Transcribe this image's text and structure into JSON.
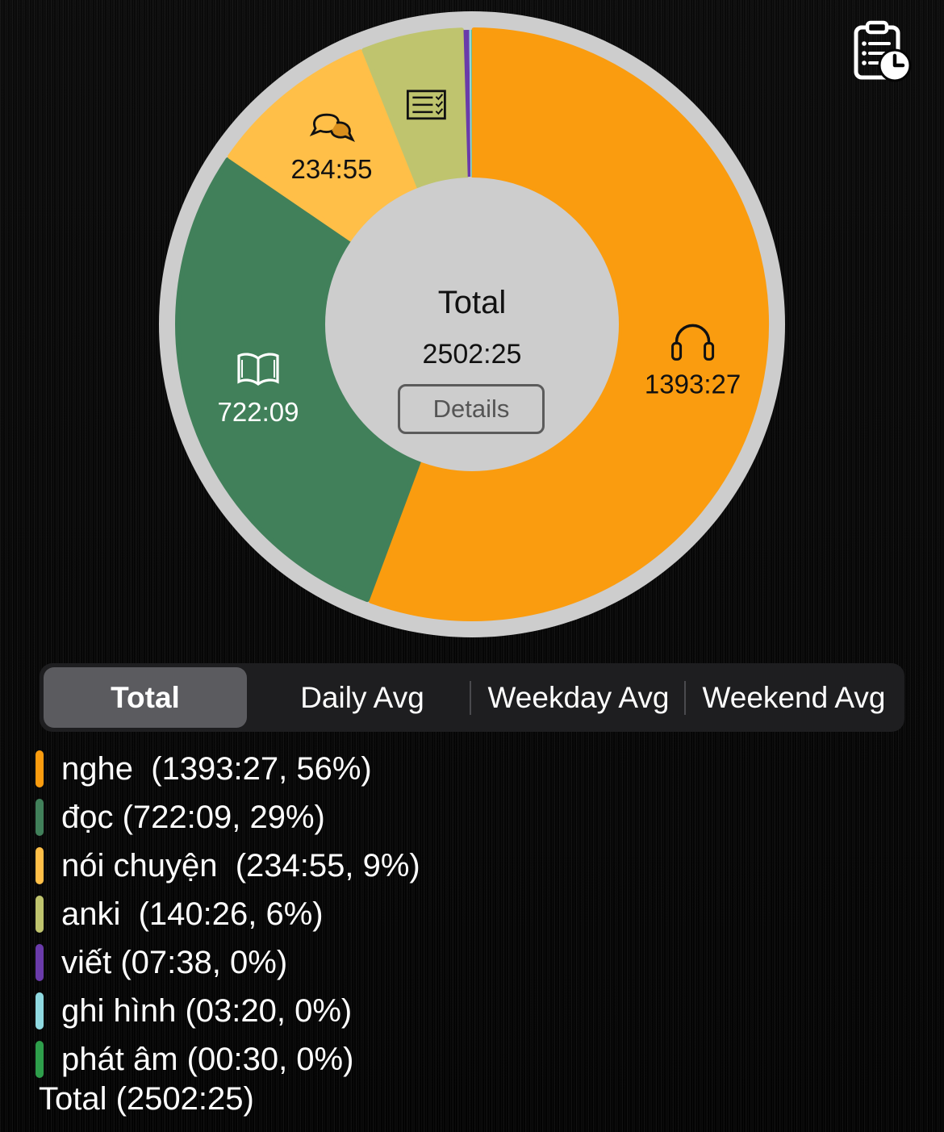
{
  "toolbar": {
    "history_icon": "clipboard-clock-icon"
  },
  "chart_data": {
    "type": "pie",
    "center": {
      "title": "Total",
      "value": "2502:25",
      "details_label": "Details"
    },
    "slices": [
      {
        "key": "nghe",
        "label": "1393:27",
        "minutes": 83607,
        "color": "#FA9C0F",
        "icon": "headphones-icon",
        "text_color": "#111111"
      },
      {
        "key": "doc",
        "label": "722:09",
        "minutes": 43329,
        "color": "#41805A",
        "icon": "book-icon",
        "text_color": "#ffffff"
      },
      {
        "key": "noi_chuyen",
        "label": "234:55",
        "minutes": 14095,
        "color": "#FFBF48",
        "icon": "chat-bubbles-icon",
        "text_color": "#111111"
      },
      {
        "key": "anki",
        "label": "",
        "minutes": 8426,
        "color": "#BFC46E",
        "icon": "checklist-icon",
        "text_color": "#111111"
      },
      {
        "key": "viet",
        "label": "",
        "minutes": 458,
        "color": "#6A3BAA",
        "icon": "",
        "text_color": "#111111"
      },
      {
        "key": "ghi_hinh",
        "label": "",
        "minutes": 200,
        "color": "#8FD9E0",
        "icon": "",
        "text_color": "#111111"
      },
      {
        "key": "phat_am",
        "label": "",
        "minutes": 30,
        "color": "#2E9E4B",
        "icon": "",
        "text_color": "#111111"
      }
    ]
  },
  "tabs": [
    {
      "label": "Total",
      "active": true
    },
    {
      "label": "Daily Avg",
      "active": false
    },
    {
      "label": "Weekday Avg",
      "active": false
    },
    {
      "label": "Weekend Avg",
      "active": false
    }
  ],
  "legend": {
    "items": [
      {
        "text": "nghe  (1393:27, 56%)",
        "color": "#FA9C0F"
      },
      {
        "text": "đọc (722:09, 29%)",
        "color": "#41805A"
      },
      {
        "text": "nói chuyện  (234:55, 9%)",
        "color": "#FFBF48"
      },
      {
        "text": "anki  (140:26, 6%)",
        "color": "#BFC46E"
      },
      {
        "text": "viết (07:38, 0%)",
        "color": "#6A3BAA"
      },
      {
        "text": "ghi hình (03:20, 0%)",
        "color": "#8FD9E0"
      },
      {
        "text": "phát âm (00:30, 0%)",
        "color": "#2E9E4B"
      }
    ],
    "total": "Total (2502:25)"
  }
}
